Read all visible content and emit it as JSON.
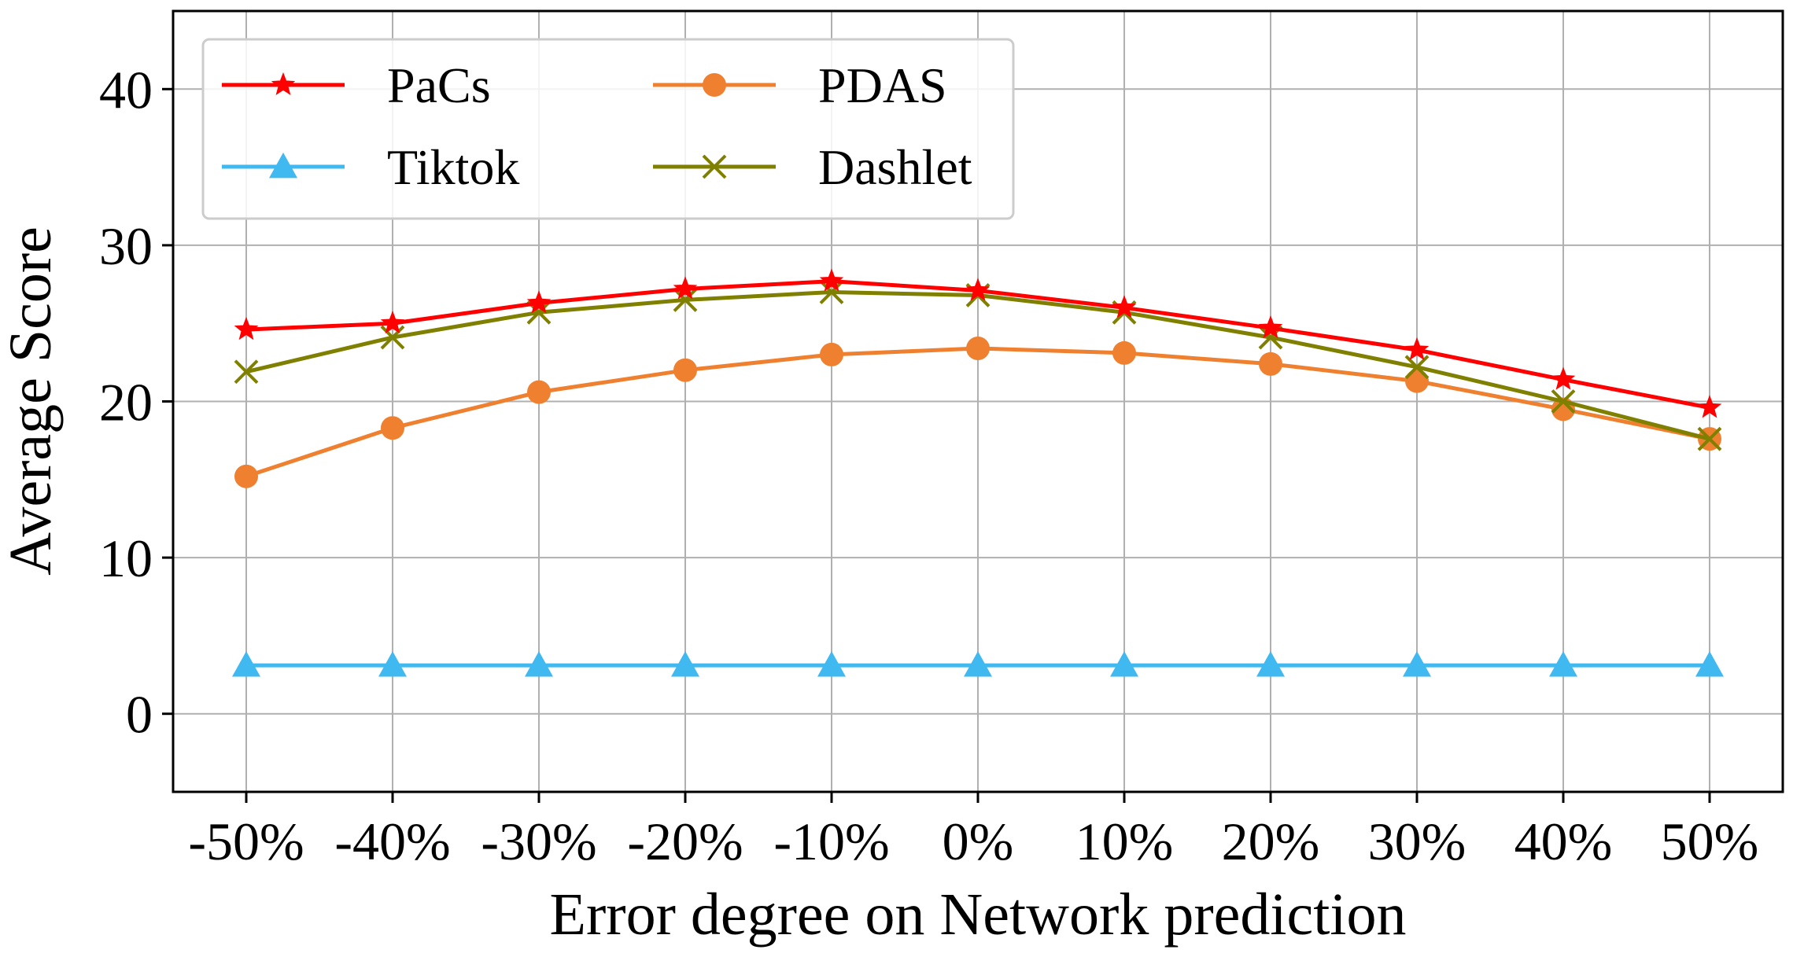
{
  "chart_data": {
    "type": "line",
    "title": "",
    "xlabel": "Error degree on Network prediction",
    "ylabel": "Average Score",
    "categories": [
      "-50%",
      "-40%",
      "-30%",
      "-20%",
      "-10%",
      "0%",
      "10%",
      "20%",
      "30%",
      "40%",
      "50%"
    ],
    "ylim": [
      -5,
      45
    ],
    "yticks": [
      0,
      10,
      20,
      30,
      40
    ],
    "grid": true,
    "legend": {
      "position": "top-left",
      "columns": 2
    },
    "series": [
      {
        "name": "PaCs",
        "color": "#ff0000",
        "marker": "star",
        "values": [
          24.6,
          25.0,
          26.3,
          27.2,
          27.7,
          27.1,
          26.0,
          24.7,
          23.3,
          21.4,
          19.6
        ]
      },
      {
        "name": "PDAS",
        "color": "#ee8030",
        "marker": "circle",
        "values": [
          15.2,
          18.3,
          20.6,
          22.0,
          23.0,
          23.4,
          23.1,
          22.4,
          21.3,
          19.5,
          17.6
        ]
      },
      {
        "name": "Tiktok",
        "color": "#40b8f0",
        "marker": "triangle",
        "values": [
          3.1,
          3.1,
          3.1,
          3.1,
          3.1,
          3.1,
          3.1,
          3.1,
          3.1,
          3.1,
          3.1
        ]
      },
      {
        "name": "Dashlet",
        "color": "#808000",
        "marker": "x",
        "values": [
          21.9,
          24.1,
          25.7,
          26.5,
          27.0,
          26.8,
          25.7,
          24.1,
          22.2,
          20.0,
          17.6
        ]
      }
    ]
  }
}
